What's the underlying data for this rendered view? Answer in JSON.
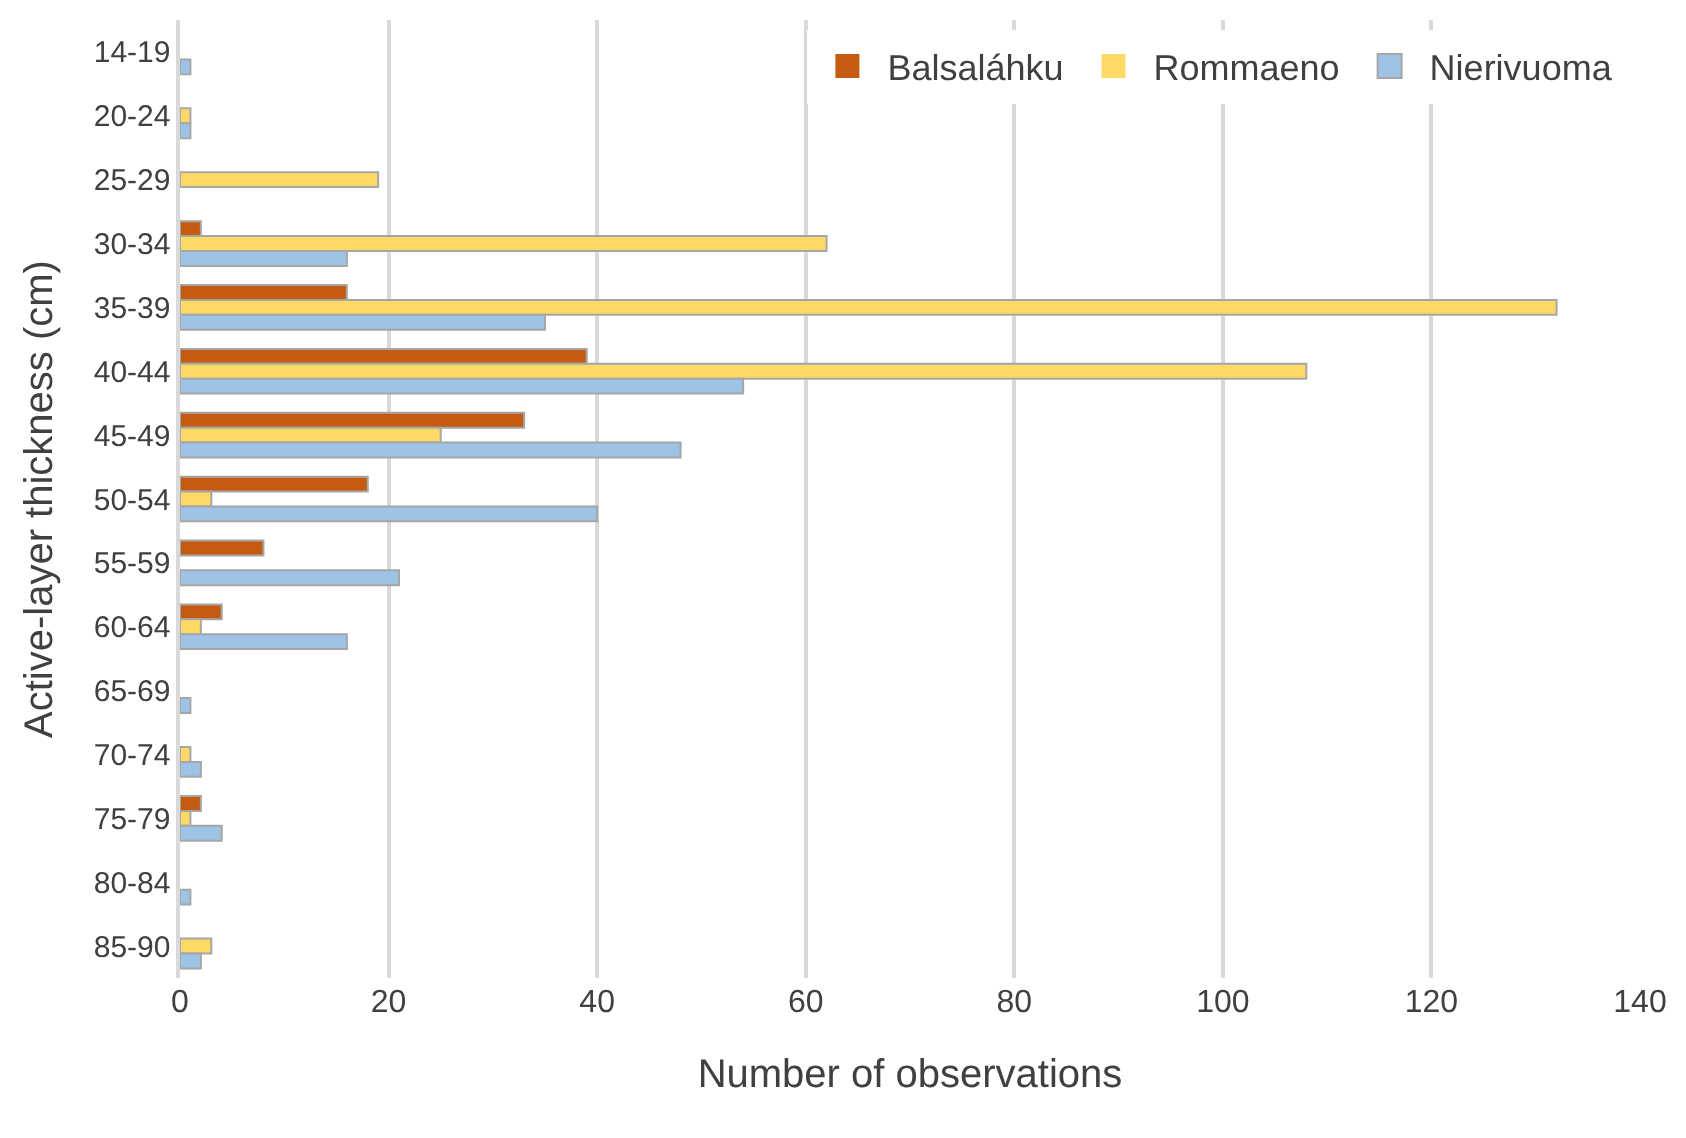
{
  "chart_data": {
    "type": "bar",
    "orientation": "horizontal",
    "xlabel": "Number of observations",
    "ylabel": "Active-layer thickness (cm)",
    "categories": [
      "14-19",
      "20-24",
      "25-29",
      "30-34",
      "35-39",
      "40-44",
      "45-49",
      "50-54",
      "55-59",
      "60-64",
      "65-69",
      "70-74",
      "75-79",
      "80-84",
      "85-90"
    ],
    "series": [
      {
        "name": "Balsaláhku",
        "color": "#c55a11",
        "values": [
          0,
          0,
          0,
          2,
          16,
          39,
          33,
          18,
          8,
          4,
          0,
          0,
          2,
          0,
          0
        ]
      },
      {
        "name": "Rommaeno",
        "color": "#ffd966",
        "values": [
          0,
          1,
          19,
          62,
          132,
          108,
          25,
          3,
          0,
          2,
          0,
          1,
          1,
          0,
          3
        ]
      },
      {
        "name": "Nierivuoma",
        "color": "#9dc3e6",
        "values": [
          1,
          1,
          0,
          16,
          35,
          54,
          48,
          40,
          21,
          16,
          1,
          2,
          4,
          1,
          2
        ]
      }
    ],
    "xlim": [
      0,
      140
    ],
    "xticks": [
      0,
      20,
      40,
      60,
      80,
      100,
      120,
      140
    ],
    "grid": "x",
    "legend": "top right"
  }
}
